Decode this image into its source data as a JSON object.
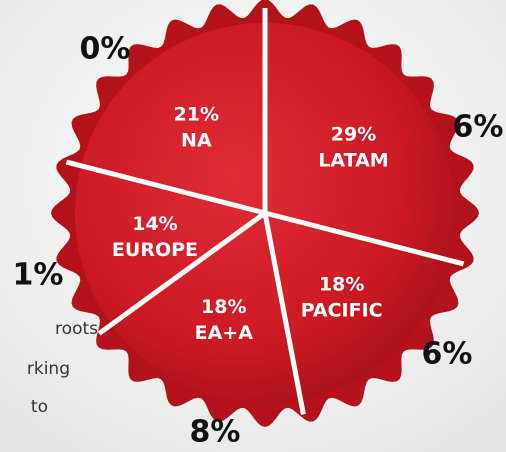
{
  "chart_data": {
    "type": "pie",
    "categories": [
      "LATAM",
      "PACIFIC",
      "EA+A",
      "EUROPE",
      "NA"
    ],
    "values": [
      29,
      18,
      18,
      14,
      21
    ],
    "value_labels": [
      "29%",
      "18%",
      "18%",
      "14%",
      "21%"
    ],
    "color": "#d01f2a",
    "outer_labels": [
      "0%",
      "6%",
      "6%",
      "8%",
      "1%"
    ]
  },
  "background_text": [
    "roots",
    "rking",
    "to"
  ]
}
